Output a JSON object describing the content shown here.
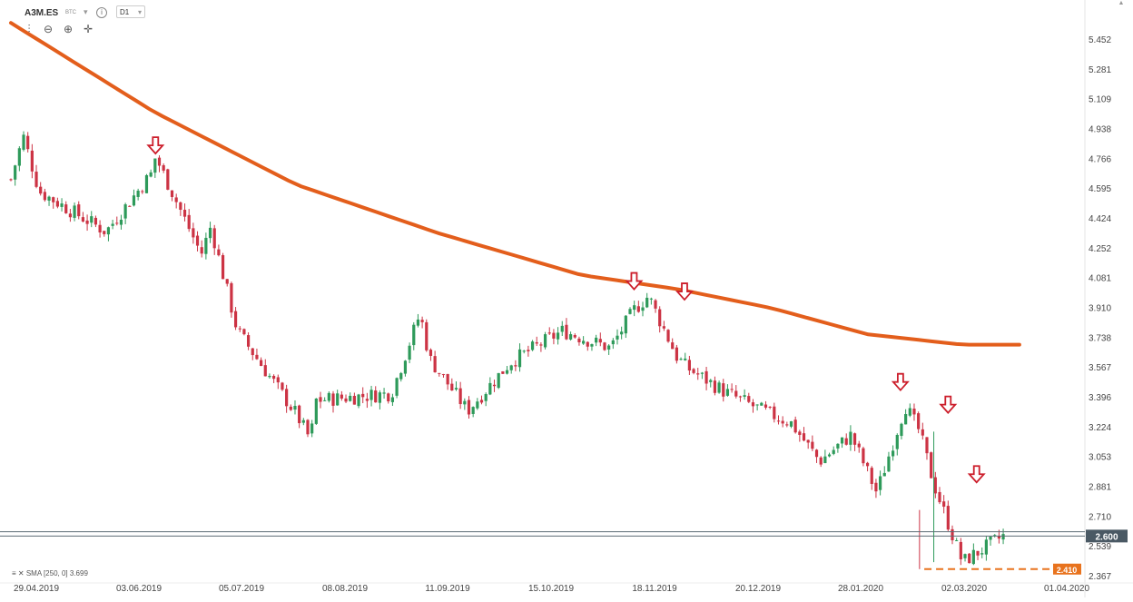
{
  "header": {
    "symbol": "A3M.ES",
    "exchange": "BTC",
    "interval": "D1",
    "info_icon": "info-icon",
    "dropdown_icon": "chevron-down-icon"
  },
  "tools": [
    {
      "name": "candlestick-type-icon",
      "glyph": "⫶"
    },
    {
      "name": "zoom-out-icon",
      "glyph": "⊖"
    },
    {
      "name": "zoom-in-icon",
      "glyph": "⊕"
    },
    {
      "name": "crosshair-move-icon",
      "glyph": "✛"
    }
  ],
  "legend": {
    "sma_text": "SMA [250, 0] 3.699"
  },
  "colors": {
    "up": "#2e9a5a",
    "down": "#cc3344",
    "sma": "#e35e1c",
    "arrow": "#cc1e2b",
    "support": "#e8731e",
    "price_tag": "#4a5964",
    "support_tag": "#e8731e"
  },
  "chart_data": {
    "type": "candlestick",
    "title": "",
    "xlabel": "",
    "ylabel": "",
    "ylim": [
      2.31,
      5.55
    ],
    "y_ticks": [
      "5.452",
      "5.281",
      "5.109",
      "4.938",
      "4.766",
      "4.595",
      "4.424",
      "4.252",
      "4.081",
      "3.910",
      "3.738",
      "3.567",
      "3.396",
      "3.224",
      "3.053",
      "2.881",
      "2.710",
      "2.539",
      "2.367"
    ],
    "x_ticks": [
      "29.04.2019",
      "03.06.2019",
      "05.07.2019",
      "08.08.2019",
      "11.09.2019",
      "15.10.2019",
      "18.11.2019",
      "20.12.2019",
      "28.01.2020",
      "02.03.2020",
      "01.04.2020"
    ],
    "current_price": 2.6,
    "current_price_label": "2.600",
    "horizontal_line_price": 2.625,
    "support_level": 2.41,
    "support_label": "2.410",
    "sma": {
      "period": 250,
      "name": "SMA",
      "x": [
        0.0,
        0.15,
        0.3,
        0.45,
        0.6,
        0.7,
        0.8,
        0.9,
        1.0,
        1.06
      ],
      "y": [
        5.55,
        5.04,
        4.62,
        4.34,
        4.1,
        4.02,
        3.91,
        3.76,
        3.7,
        3.7
      ]
    },
    "price_path": {
      "x": [
        0.0,
        0.013,
        0.03,
        0.1,
        0.15,
        0.115,
        0.135,
        0.152,
        0.2,
        0.21,
        0.238,
        0.3,
        0.315,
        0.32,
        0.4,
        0.43,
        0.44,
        0.48,
        0.525,
        0.58,
        0.63,
        0.655,
        0.67,
        0.7,
        0.71,
        0.75,
        0.79,
        0.82,
        0.85,
        0.883,
        0.91,
        0.94,
        0.955,
        0.97,
        1.0,
        1.043
      ],
      "close": [
        4.65,
        4.9,
        4.58,
        4.35,
        4.7,
        4.2,
        4.5,
        4.78,
        4.22,
        4.38,
        3.78,
        3.3,
        3.15,
        3.38,
        3.42,
        3.88,
        3.62,
        3.32,
        3.6,
        3.78,
        3.68,
        3.9,
        3.98,
        3.63,
        3.57,
        3.43,
        3.32,
        3.25,
        3.03,
        3.18,
        2.85,
        3.35,
        3.2,
        2.9,
        2.45,
        2.6
      ]
    },
    "resistance_arrows_at": [
      {
        "x": 0.152,
        "price": 4.83
      },
      {
        "x": 0.655,
        "price": 4.05
      },
      {
        "x": 0.708,
        "price": 3.99
      },
      {
        "x": 0.935,
        "price": 3.47
      },
      {
        "x": 0.985,
        "price": 3.34
      },
      {
        "x": 1.015,
        "price": 2.94
      }
    ],
    "grid": false,
    "legend_position": "bottom-left"
  }
}
